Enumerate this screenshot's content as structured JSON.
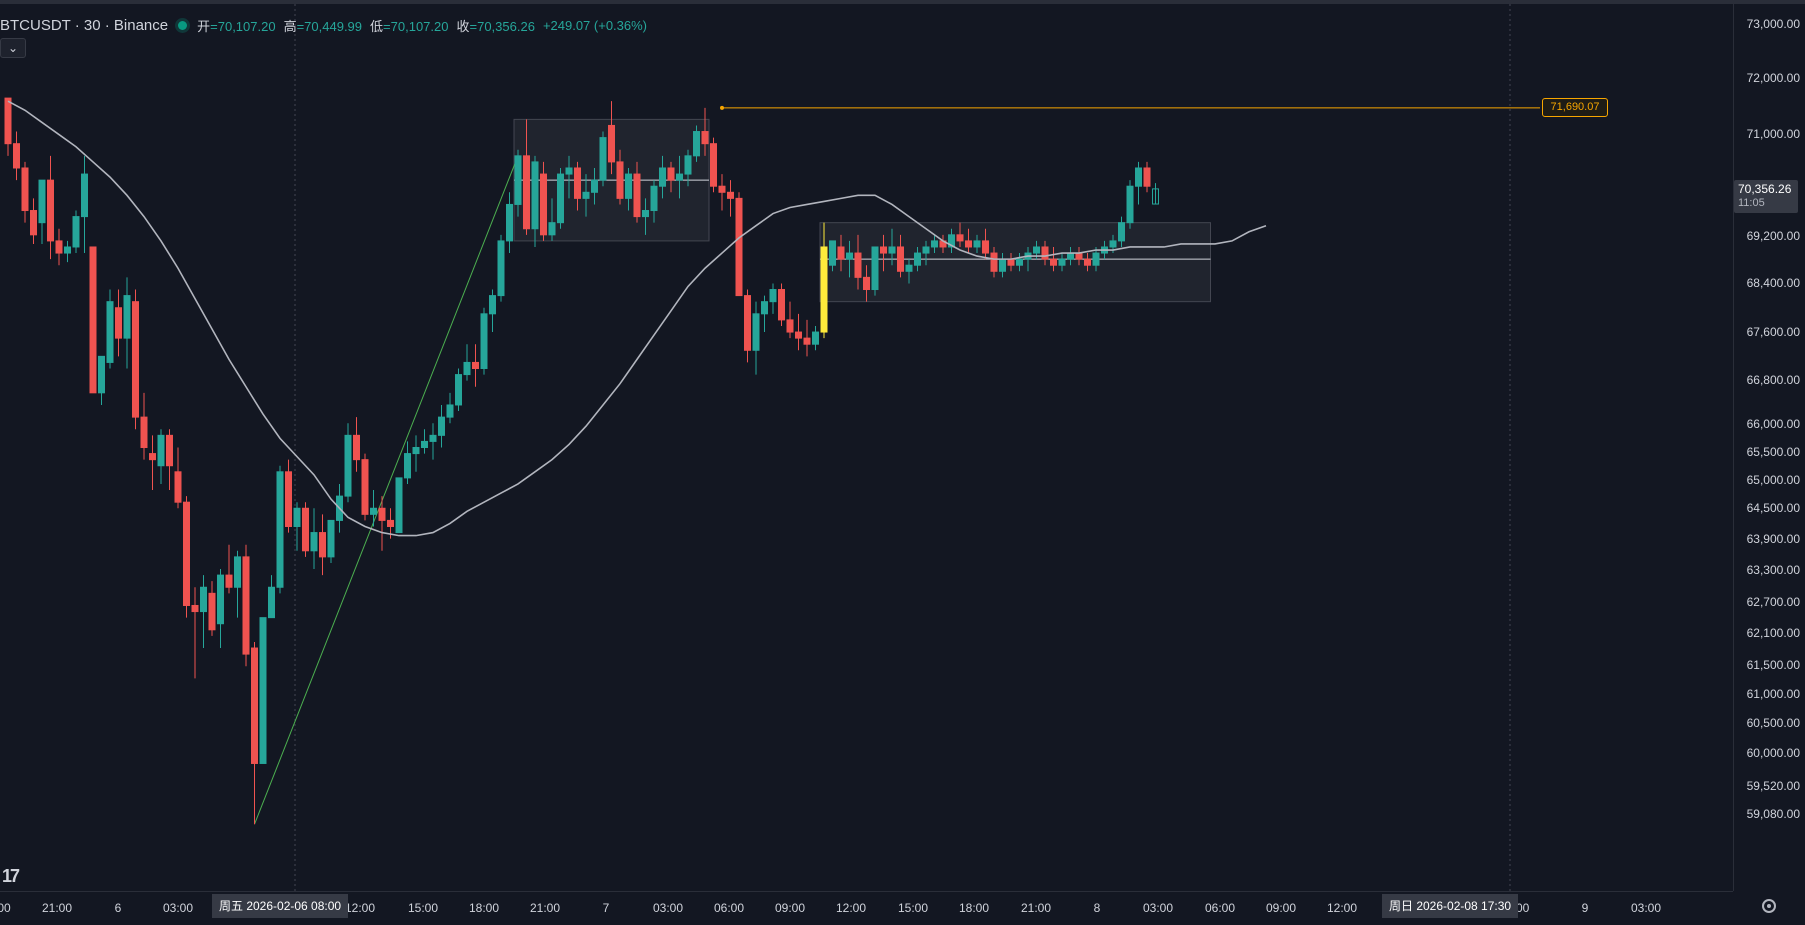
{
  "header": {
    "symbol": "BTCUSDT · 30 · Binance",
    "open_label": "开",
    "open": "=70,107.20",
    "high_label": "高",
    "high": "=70,449.99",
    "low_label": "低",
    "low": "=70,107.20",
    "close_label": "收",
    "close": "=70,356.26",
    "change": "+249.07 (+0.36%)"
  },
  "collapse_icon": "chevron-down-icon",
  "price_axis": {
    "ticks": [
      "73,000.00",
      "72,000.00",
      "71,000.00",
      "69,200.00",
      "68,400.00",
      "67,600.00",
      "66,800.00",
      "66,000.00",
      "65,500.00",
      "65,000.00",
      "64,500.00",
      "63,900.00",
      "63,300.00",
      "62,700.00",
      "62,100.00",
      "61,500.00",
      "61,000.00",
      "60,500.00",
      "60,000.00",
      "59,520.00",
      "59,080.00"
    ],
    "current_price": "70,356.26",
    "countdown": "11:05",
    "level_price": "71,690.07"
  },
  "time_axis": {
    "ticks": [
      "00",
      "21:00",
      "6",
      "03:00",
      "12:00",
      "15:00",
      "18:00",
      "21:00",
      "7",
      "03:00",
      "06:00",
      "09:00",
      "12:00",
      "15:00",
      "18:00",
      "21:00",
      "8",
      "03:00",
      "06:00",
      "09:00",
      "12:00",
      ":00",
      "9",
      "03:00"
    ],
    "date_tag_left": "周五 2026-02-06   08:00",
    "date_tag_right": "周日 2026-02-08   17:30"
  },
  "logo": "17",
  "colors": {
    "up": "#26a69a",
    "down": "#ef5350",
    "ma": "#b2b5be",
    "level": "#f7a600",
    "trend": "#4caf50",
    "highlight": "#ffeb3b"
  },
  "chart_data": {
    "type": "candlestick",
    "symbol": "BTCUSDT",
    "interval": "30",
    "price_range": [
      58900,
      73300
    ],
    "horizontal_level": 71690.07,
    "current": {
      "open": 70107.2,
      "high": 70449.99,
      "low": 70107.2,
      "close": 70356.26
    },
    "candles": [
      [
        71850,
        71850,
        70900,
        71100
      ],
      [
        71100,
        71300,
        70500,
        70700
      ],
      [
        70700,
        70800,
        69800,
        70000
      ],
      [
        70000,
        70200,
        69450,
        69600
      ],
      [
        69800,
        70500,
        69450,
        70500
      ],
      [
        70500,
        70900,
        69200,
        69500
      ],
      [
        69500,
        69700,
        69100,
        69300
      ],
      [
        69300,
        69500,
        69150,
        69400
      ],
      [
        69400,
        70000,
        69300,
        69900
      ],
      [
        69900,
        70900,
        69300,
        70600
      ],
      [
        69400,
        69400,
        67000,
        67000
      ],
      [
        67000,
        67600,
        66800,
        67600
      ],
      [
        67500,
        68700,
        67400,
        68500
      ],
      [
        68400,
        68700,
        67600,
        67900
      ],
      [
        67900,
        68900,
        67400,
        68600
      ],
      [
        68500,
        68700,
        66400,
        66600
      ],
      [
        66600,
        67000,
        65900,
        66100
      ],
      [
        66000,
        66300,
        65400,
        65900
      ],
      [
        65800,
        66400,
        65500,
        66300
      ],
      [
        66300,
        66400,
        65400,
        65800
      ],
      [
        65700,
        66100,
        65100,
        65200
      ],
      [
        65200,
        65300,
        63300,
        63500
      ],
      [
        63500,
        63800,
        62300,
        63400
      ],
      [
        63400,
        64000,
        62800,
        63800
      ],
      [
        63700,
        63900,
        63000,
        63100
      ],
      [
        63200,
        64100,
        62800,
        64000
      ],
      [
        64000,
        64500,
        63700,
        63800
      ],
      [
        63800,
        64400,
        63300,
        64300
      ],
      [
        64300,
        64500,
        62500,
        62700
      ],
      [
        62800,
        62900,
        59900,
        60900
      ],
      [
        60900,
        63300,
        60900,
        63300
      ],
      [
        63300,
        64000,
        63300,
        63800
      ],
      [
        63800,
        65800,
        63700,
        65700
      ],
      [
        65700,
        65900,
        64700,
        64800
      ],
      [
        64800,
        65200,
        64400,
        65100
      ],
      [
        65100,
        65200,
        64300,
        64400
      ],
      [
        64400,
        65100,
        64100,
        64700
      ],
      [
        64700,
        65000,
        64000,
        64300
      ],
      [
        64300,
        64900,
        64200,
        64900
      ],
      [
        64900,
        65500,
        64700,
        65300
      ],
      [
        65300,
        66500,
        65200,
        66300
      ],
      [
        66300,
        66600,
        65700,
        65900
      ],
      [
        65900,
        66000,
        64900,
        65000
      ],
      [
        65000,
        65400,
        64800,
        65100
      ],
      [
        65100,
        65300,
        64400,
        64900
      ],
      [
        64900,
        65100,
        64600,
        64800
      ],
      [
        64700,
        65600,
        64700,
        65600
      ],
      [
        65600,
        66200,
        65500,
        66000
      ],
      [
        66000,
        66300,
        65700,
        66100
      ],
      [
        66100,
        66400,
        66000,
        66200
      ],
      [
        66200,
        66500,
        65900,
        66300
      ],
      [
        66300,
        66800,
        66100,
        66600
      ],
      [
        66600,
        67000,
        66500,
        66800
      ],
      [
        66800,
        67400,
        66700,
        67300
      ],
      [
        67300,
        67800,
        67200,
        67500
      ],
      [
        67500,
        67800,
        67100,
        67400
      ],
      [
        67400,
        68400,
        67300,
        68300
      ],
      [
        68300,
        68700,
        68000,
        68600
      ],
      [
        68600,
        69600,
        68500,
        69500
      ],
      [
        69500,
        70300,
        69300,
        70100
      ],
      [
        70100,
        71000,
        69900,
        70900
      ],
      [
        70900,
        71500,
        69600,
        69700
      ],
      [
        69700,
        70900,
        69400,
        70800
      ],
      [
        70600,
        70800,
        69500,
        69600
      ],
      [
        69600,
        70200,
        69500,
        69800
      ],
      [
        69800,
        70700,
        69700,
        70600
      ],
      [
        70600,
        70900,
        70200,
        70700
      ],
      [
        70700,
        70800,
        70000,
        70200
      ],
      [
        70200,
        70600,
        69900,
        70300
      ],
      [
        70300,
        70700,
        70100,
        70500
      ],
      [
        70500,
        71300,
        70400,
        71200
      ],
      [
        71400,
        71800,
        70600,
        70800
      ],
      [
        70800,
        71000,
        70100,
        70200
      ],
      [
        70200,
        70700,
        70000,
        70600
      ],
      [
        70600,
        70800,
        69800,
        69900
      ],
      [
        69900,
        70200,
        69600,
        70000
      ],
      [
        70000,
        70500,
        69800,
        70400
      ],
      [
        70400,
        70900,
        70200,
        70700
      ],
      [
        70700,
        70800,
        70300,
        70500
      ],
      [
        70500,
        70900,
        70200,
        70600
      ],
      [
        70600,
        71000,
        70400,
        70900
      ],
      [
        70900,
        71400,
        70800,
        71300
      ],
      [
        71300,
        71690,
        70900,
        71100
      ],
      [
        71100,
        71200,
        70300,
        70400
      ],
      [
        70400,
        70600,
        70000,
        70300
      ],
      [
        70300,
        70500,
        69900,
        70200
      ],
      [
        70200,
        70300,
        68600,
        68600
      ],
      [
        68600,
        68700,
        67500,
        67700
      ],
      [
        67700,
        68500,
        67300,
        68300
      ],
      [
        68300,
        68600,
        68000,
        68500
      ],
      [
        68500,
        68800,
        68300,
        68700
      ],
      [
        68700,
        68800,
        68100,
        68200
      ],
      [
        68200,
        68500,
        67900,
        68000
      ],
      [
        68000,
        68300,
        67700,
        67900
      ],
      [
        67900,
        68200,
        67600,
        67800
      ],
      [
        67800,
        68100,
        67700,
        68000
      ],
      [
        68000,
        69800,
        67900,
        69400
      ],
      [
        69100,
        69500,
        69000,
        69500
      ],
      [
        69400,
        69600,
        69000,
        69200
      ],
      [
        69200,
        69500,
        68900,
        69300
      ],
      [
        69300,
        69600,
        68700,
        68900
      ],
      [
        68900,
        69100,
        68500,
        68700
      ],
      [
        68700,
        69400,
        68600,
        69400
      ],
      [
        69400,
        69600,
        69000,
        69300
      ],
      [
        69300,
        69700,
        69100,
        69400
      ],
      [
        69400,
        69600,
        68900,
        69000
      ],
      [
        69000,
        69200,
        68800,
        69100
      ],
      [
        69100,
        69400,
        69000,
        69300
      ],
      [
        69300,
        69500,
        69100,
        69400
      ],
      [
        69400,
        69600,
        69300,
        69500
      ],
      [
        69500,
        69600,
        69300,
        69400
      ],
      [
        69400,
        69700,
        69300,
        69600
      ],
      [
        69600,
        69800,
        69400,
        69500
      ],
      [
        69500,
        69700,
        69300,
        69400
      ],
      [
        69400,
        69600,
        69300,
        69500
      ],
      [
        69500,
        69700,
        69200,
        69300
      ],
      [
        69300,
        69400,
        68900,
        69000
      ],
      [
        69000,
        69300,
        68900,
        69200
      ],
      [
        69200,
        69300,
        69000,
        69100
      ],
      [
        69100,
        69300,
        69000,
        69200
      ],
      [
        69200,
        69400,
        69000,
        69300
      ],
      [
        69300,
        69500,
        69200,
        69400
      ],
      [
        69400,
        69500,
        69100,
        69200
      ],
      [
        69200,
        69400,
        69000,
        69100
      ],
      [
        69100,
        69300,
        69000,
        69200
      ],
      [
        69200,
        69400,
        69100,
        69300
      ],
      [
        69300,
        69400,
        69100,
        69200
      ],
      [
        69200,
        69300,
        69000,
        69100
      ],
      [
        69100,
        69400,
        69000,
        69300
      ],
      [
        69300,
        69500,
        69200,
        69400
      ],
      [
        69400,
        69600,
        69300,
        69500
      ],
      [
        69500,
        69900,
        69400,
        69800
      ],
      [
        69800,
        70500,
        69700,
        70400
      ],
      [
        70400,
        70800,
        70100,
        70700
      ],
      [
        70700,
        70800,
        70300,
        70400
      ],
      [
        70107,
        70450,
        70107,
        70356
      ]
    ],
    "ma_line": [
      71800,
      71650,
      71450,
      71250,
      71050,
      70800,
      70550,
      70250,
      69900,
      69500,
      69050,
      68550,
      68050,
      67550,
      67100,
      66650,
      66250,
      65950,
      65650,
      65250,
      64950,
      64800,
      64700,
      64650,
      64650,
      64700,
      64850,
      65050,
      65200,
      65350,
      65500,
      65700,
      65900,
      66150,
      66450,
      66800,
      67150,
      67550,
      67950,
      68350,
      68750,
      69050,
      69300,
      69550,
      69750,
      69950,
      70050,
      70100,
      70150,
      70200,
      70250,
      70250,
      70100,
      69900,
      69700,
      69500,
      69350,
      69250,
      69200,
      69200,
      69250,
      69250,
      69300,
      69300,
      69350,
      69350,
      69400,
      69400,
      69400,
      69450,
      69450,
      69450,
      69500,
      69650,
      69750
    ],
    "zones": [
      {
        "t_start": 60,
        "t_end": 82,
        "p_top": 71500,
        "p_bottom": 69500,
        "mid": 70500
      },
      {
        "t_start": 96,
        "t_end": 141,
        "p_top": 69800,
        "p_bottom": 68500,
        "mid": 69200
      }
    ],
    "trend_line": {
      "from": [
        29,
        59900
      ],
      "to": [
        60,
        70900
      ]
    }
  }
}
